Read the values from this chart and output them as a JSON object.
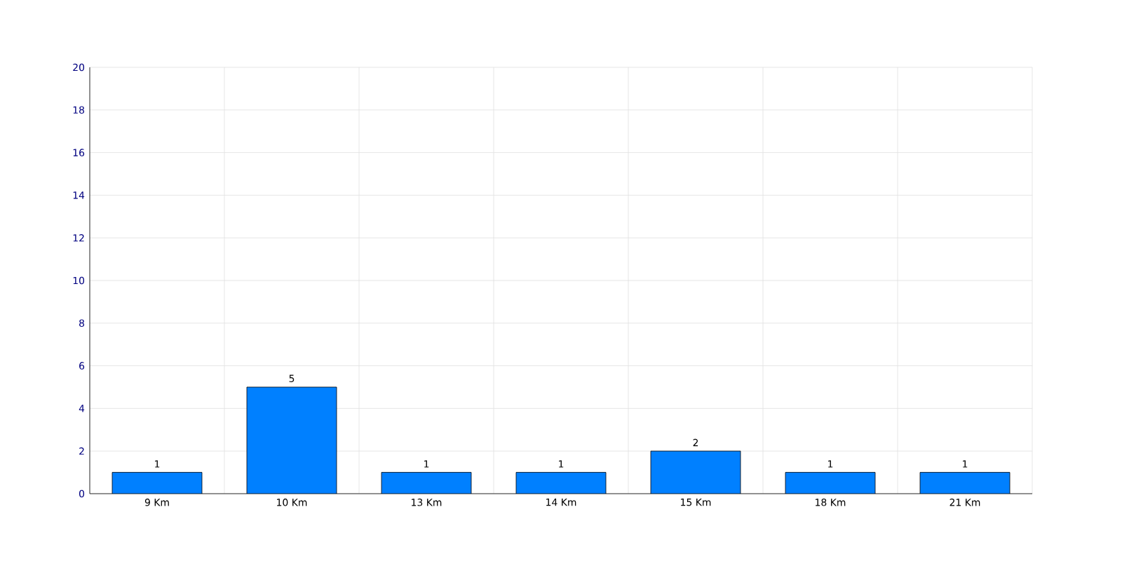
{
  "chart_data": {
    "type": "bar",
    "categories": [
      "9 Km",
      "10 Km",
      "13 Km",
      "14 Km",
      "15 Km",
      "18 Km",
      "21 Km"
    ],
    "values": [
      1,
      5,
      1,
      1,
      2,
      1,
      1
    ],
    "color": "#0080ff",
    "ylim": [
      0,
      20
    ],
    "yticks": [
      0,
      2,
      4,
      6,
      8,
      10,
      12,
      14,
      16,
      18,
      20
    ],
    "grid": true,
    "data_labels": true
  }
}
